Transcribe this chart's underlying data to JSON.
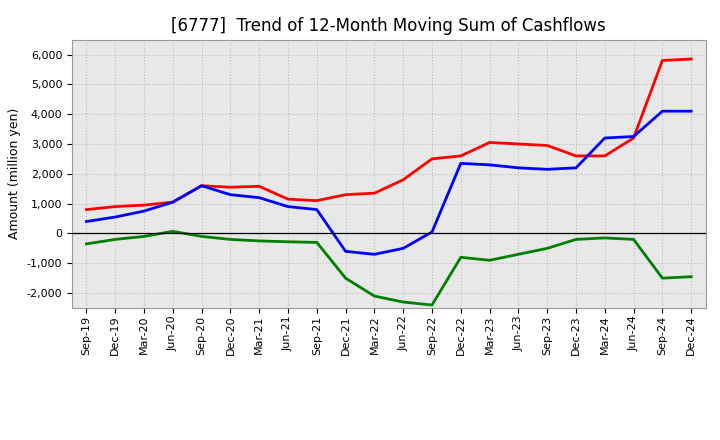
{
  "title": "[6777]  Trend of 12-Month Moving Sum of Cashflows",
  "ylabel": "Amount (million yen)",
  "x_labels": [
    "Sep-19",
    "Dec-19",
    "Mar-20",
    "Jun-20",
    "Sep-20",
    "Dec-20",
    "Mar-21",
    "Jun-21",
    "Sep-21",
    "Dec-21",
    "Mar-22",
    "Jun-22",
    "Sep-22",
    "Dec-22",
    "Mar-23",
    "Jun-23",
    "Sep-23",
    "Dec-23",
    "Mar-24",
    "Jun-24",
    "Sep-24",
    "Dec-24"
  ],
  "operating_cashflow": [
    800,
    900,
    950,
    1050,
    1600,
    1550,
    1580,
    1150,
    1100,
    1300,
    1350,
    1800,
    2500,
    2600,
    3050,
    3000,
    2950,
    2600,
    2600,
    3200,
    5800,
    5850
  ],
  "investing_cashflow": [
    -350,
    -200,
    -100,
    70,
    -100,
    -200,
    -250,
    -280,
    -300,
    -1500,
    -2100,
    -2300,
    -2400,
    -800,
    -900,
    -700,
    -500,
    -200,
    -150,
    -200,
    -1500,
    -1450
  ],
  "free_cashflow": [
    400,
    550,
    750,
    1050,
    1600,
    1300,
    1200,
    900,
    800,
    -600,
    -700,
    -500,
    50,
    2350,
    2300,
    2200,
    2150,
    2200,
    3200,
    3250,
    4100,
    4100
  ],
  "operating_color": "#FF0000",
  "investing_color": "#008000",
  "free_color": "#0000FF",
  "ylim": [
    -2500,
    6500
  ],
  "yticks": [
    -2000,
    -1000,
    0,
    1000,
    2000,
    3000,
    4000,
    5000,
    6000
  ],
  "bg_color": "#FFFFFF",
  "plot_bg_color": "#E8E8E8",
  "grid_color": "#BBBBBB",
  "line_width": 2.0,
  "title_fontsize": 12,
  "axis_label_fontsize": 9,
  "tick_fontsize": 8,
  "legend_fontsize": 9
}
